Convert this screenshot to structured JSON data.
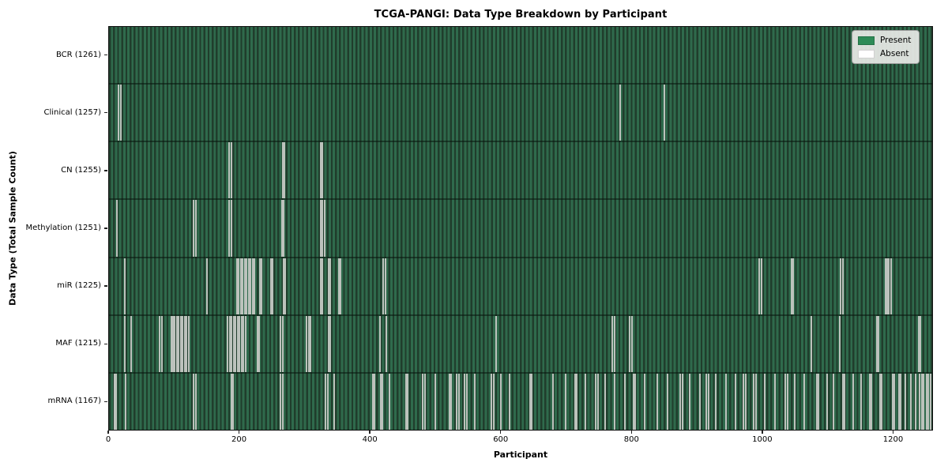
{
  "colors": {
    "present": "#2e8b57",
    "absent": "#ffffff",
    "plot_texture_dark": "#203d2c",
    "plot_texture_light": "#2f6a4c",
    "absent_stripe_render": "#bcc2bc",
    "row_divider": "rgba(8,22,14,0.55)",
    "figure_background": "#ffffff",
    "axis_border": "#111111"
  },
  "chart_data": {
    "type": "heatmap",
    "title": "TCGA-PANGI: Data Type Breakdown by Participant",
    "xlabel": "Participant",
    "ylabel": "Data Type (Total Sample Count)",
    "x_range": [
      0,
      1261
    ],
    "x_ticks": [
      0,
      200,
      400,
      600,
      800,
      1000,
      1200
    ],
    "grid": false,
    "legend_position": "upper right",
    "legend": [
      {
        "label": "Present",
        "color": "#2e8b57"
      },
      {
        "label": "Absent",
        "color": "#ffffff"
      }
    ],
    "rows": [
      {
        "label": "BCR (1261)",
        "data_type": "BCR",
        "present_count": 1261,
        "absent_count": 0,
        "absent_participants": []
      },
      {
        "label": "Clinical (1257)",
        "data_type": "Clinical",
        "present_count": 1257,
        "absent_count": 4,
        "absent_participants": [
          15,
          18,
          783,
          851
        ]
      },
      {
        "label": "CN (1255)",
        "data_type": "CN",
        "present_count": 1255,
        "absent_count": 6,
        "absent_participants": [
          184,
          187,
          266,
          269,
          324,
          327
        ]
      },
      {
        "label": "Methylation (1251)",
        "data_type": "Methylation",
        "present_count": 1251,
        "absent_count": 10,
        "absent_participants": [
          12,
          130,
          133,
          184,
          187,
          265,
          268,
          324,
          327,
          330
        ]
      },
      {
        "label": "miR (1225)",
        "data_type": "miR",
        "present_count": 1225,
        "absent_count": 36,
        "absent_participants": [
          24,
          150,
          196,
          199,
          202,
          205,
          208,
          211,
          214,
          217,
          220,
          223,
          231,
          234,
          248,
          251,
          267,
          270,
          324,
          327,
          336,
          339,
          352,
          355,
          420,
          423,
          996,
          999,
          1045,
          1048,
          1121,
          1124,
          1189,
          1192,
          1195,
          1198
        ]
      },
      {
        "label": "MAF (1215)",
        "data_type": "MAF",
        "present_count": 1215,
        "absent_count": 46,
        "absent_participants": [
          24,
          34,
          78,
          81,
          95,
          98,
          101,
          104,
          107,
          110,
          113,
          116,
          119,
          122,
          182,
          185,
          188,
          191,
          194,
          197,
          200,
          203,
          206,
          209,
          227,
          230,
          263,
          266,
          303,
          306,
          309,
          336,
          339,
          415,
          425,
          593,
          771,
          774,
          798,
          801,
          1076,
          1120,
          1176,
          1179,
          1240,
          1243
        ]
      },
      {
        "label": "mRNA (1167)",
        "data_type": "mRNA",
        "present_count": 1167,
        "absent_count": 94,
        "absent_participants": [
          8,
          11,
          25,
          130,
          133,
          187,
          190,
          263,
          266,
          332,
          335,
          345,
          404,
          407,
          416,
          419,
          430,
          455,
          458,
          481,
          484,
          500,
          521,
          524,
          533,
          536,
          545,
          548,
          560,
          586,
          589,
          600,
          614,
          645,
          648,
          680,
          700,
          714,
          717,
          730,
          746,
          749,
          760,
          775,
          790,
          803,
          806,
          820,
          840,
          855,
          875,
          878,
          890,
          905,
          915,
          918,
          930,
          945,
          960,
          972,
          975,
          988,
          991,
          1005,
          1020,
          1036,
          1039,
          1050,
          1065,
          1084,
          1087,
          1100,
          1110,
          1124,
          1127,
          1140,
          1152,
          1165,
          1168,
          1181,
          1184,
          1200,
          1203,
          1210,
          1213,
          1220,
          1228,
          1235,
          1242,
          1245,
          1248,
          1252,
          1255,
          1258
        ]
      }
    ]
  }
}
